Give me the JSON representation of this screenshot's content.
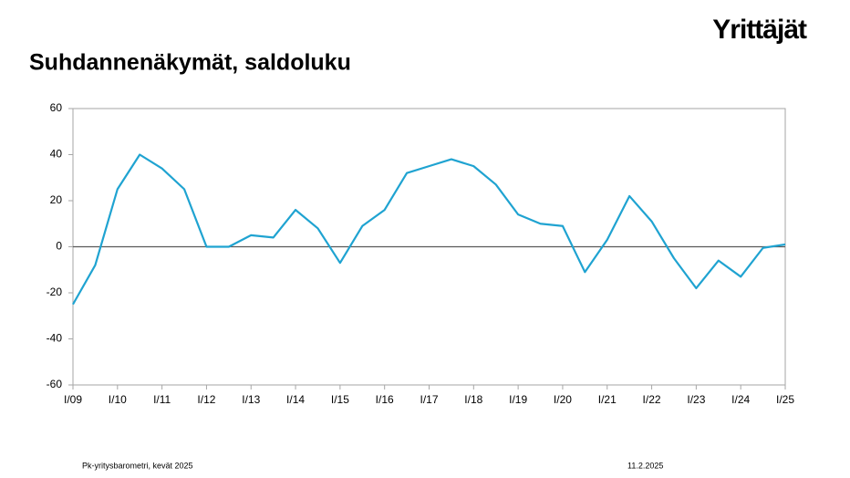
{
  "logo": "Yrittäjät",
  "footer": {
    "source": "Pk-yritysbarometri, kevät 2025",
    "date": "11.2.2025"
  },
  "chart_data": {
    "type": "line",
    "title": "Suhdannenäkymät, saldoluku",
    "categories": [
      "I/09",
      null,
      "I/10",
      null,
      "I/11",
      null,
      "I/12",
      null,
      "I/13",
      null,
      "I/14",
      null,
      "I/15",
      null,
      "I/16",
      null,
      "I/17",
      null,
      "I/18",
      null,
      "I/19",
      null,
      "I/20",
      null,
      "I/21",
      null,
      "I/22",
      null,
      "I/23",
      null,
      "I/24",
      null,
      "I/25"
    ],
    "series": [
      {
        "name": "Suhdannenäkymät",
        "color": "#1fa3d1",
        "values": [
          -25,
          -8,
          25,
          40,
          34,
          25,
          0,
          0,
          5,
          4,
          16,
          8,
          -7,
          9,
          16,
          32,
          35,
          38,
          35,
          27,
          14,
          10,
          9,
          -11,
          3,
          22,
          11,
          -5,
          -18,
          -6,
          -13,
          -0.5,
          1
        ]
      }
    ],
    "ylim": [
      -60,
      60
    ],
    "yticks": [
      -60,
      -40,
      -20,
      0,
      20,
      40,
      60
    ],
    "grid": false
  }
}
